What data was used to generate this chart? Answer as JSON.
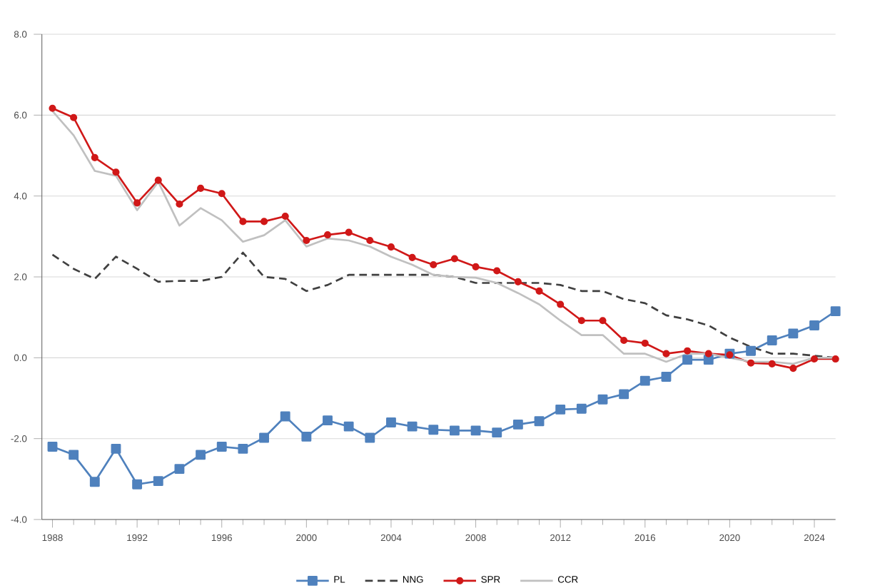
{
  "chart_data": {
    "type": "line",
    "x": [
      1988,
      1989,
      1990,
      1991,
      1992,
      1993,
      1994,
      1995,
      1996,
      1997,
      1998,
      1999,
      2000,
      2001,
      2002,
      2003,
      2004,
      2005,
      2006,
      2007,
      2008,
      2009,
      2010,
      2011,
      2012,
      2013,
      2014,
      2015,
      2016,
      2017,
      2018,
      2019,
      2020,
      2021,
      2022,
      2023,
      2024,
      2025
    ],
    "series": [
      {
        "name": "PL",
        "color": "#4f81bd",
        "marker": "square",
        "line_style": "solid",
        "values": [
          -2.2,
          -2.4,
          -3.07,
          -2.25,
          -3.13,
          -3.05,
          -2.75,
          -2.4,
          -2.2,
          -2.25,
          -1.98,
          -1.45,
          -1.95,
          -1.55,
          -1.7,
          -1.98,
          -1.6,
          -1.7,
          -1.78,
          -1.8,
          -1.8,
          -1.85,
          -1.65,
          -1.57,
          -1.28,
          -1.26,
          -1.03,
          -0.9,
          -0.57,
          -0.47,
          -0.05,
          -0.05,
          0.1,
          0.17,
          0.43,
          0.6,
          0.8,
          1.15
        ]
      },
      {
        "name": "NNG",
        "color": "#404040",
        "marker": "none",
        "line_style": "dashed",
        "values": [
          2.55,
          2.2,
          1.95,
          2.5,
          2.2,
          1.88,
          1.9,
          1.9,
          2.0,
          2.6,
          2.0,
          1.95,
          1.65,
          1.8,
          2.05,
          2.05,
          2.05,
          2.05,
          2.05,
          2.0,
          1.85,
          1.85,
          1.85,
          1.85,
          1.8,
          1.65,
          1.65,
          1.45,
          1.35,
          1.05,
          0.95,
          0.8,
          0.5,
          0.27,
          0.1,
          0.1,
          0.05,
          0.0
        ]
      },
      {
        "name": "SPR",
        "color": "#d01818",
        "marker": "circle",
        "line_style": "solid",
        "values": [
          6.17,
          5.94,
          4.95,
          4.59,
          3.83,
          4.39,
          3.8,
          4.19,
          4.06,
          3.37,
          3.37,
          3.5,
          2.9,
          3.04,
          3.1,
          2.9,
          2.74,
          2.48,
          2.3,
          2.45,
          2.25,
          2.15,
          1.88,
          1.65,
          1.32,
          0.92,
          0.92,
          0.43,
          0.36,
          0.1,
          0.17,
          0.1,
          0.07,
          -0.13,
          -0.15,
          -0.26,
          -0.03,
          -0.03
        ]
      },
      {
        "name": "CCR",
        "color": "#c0c0c0",
        "marker": "none",
        "line_style": "solid",
        "values": [
          6.1,
          5.5,
          4.62,
          4.5,
          3.65,
          4.35,
          3.27,
          3.7,
          3.4,
          2.87,
          3.03,
          3.4,
          2.75,
          2.95,
          2.9,
          2.75,
          2.5,
          2.3,
          2.05,
          2.0,
          1.98,
          1.85,
          1.6,
          1.32,
          0.92,
          0.56,
          0.56,
          0.1,
          0.1,
          -0.1,
          0.1,
          0.1,
          0.0,
          -0.1,
          -0.1,
          -0.15,
          0.0,
          0.0
        ]
      }
    ],
    "xlim": [
      1987.5,
      2025
    ],
    "xticks": [
      1988,
      1992,
      1996,
      2000,
      2004,
      2008,
      2012,
      2016,
      2020,
      2024
    ],
    "ylim": [
      -4,
      8
    ],
    "yticks": [
      {
        "value": -4,
        "label": "-4.0"
      },
      {
        "value": -2,
        "label": "-2.0"
      },
      {
        "value": 0,
        "label": "0.0"
      },
      {
        "value": 2,
        "label": "2.0"
      },
      {
        "value": 4,
        "label": "4.0"
      },
      {
        "value": 6,
        "label": "6.0"
      },
      {
        "value": 8,
        "label": "8.0"
      }
    ],
    "grid": "y",
    "legend": "bottom"
  }
}
